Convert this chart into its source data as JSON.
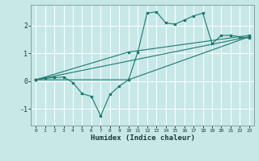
{
  "xlabel": "Humidex (Indice chaleur)",
  "bg_color": "#c8e8e8",
  "line_color": "#1a7a6e",
  "grid_color": "#ffffff",
  "xlim": [
    -0.5,
    23.5
  ],
  "ylim": [
    -1.6,
    2.75
  ],
  "yticks": [
    -1,
    0,
    1,
    2
  ],
  "xticks": [
    0,
    1,
    2,
    3,
    4,
    5,
    6,
    7,
    8,
    9,
    10,
    11,
    12,
    13,
    14,
    15,
    16,
    17,
    18,
    19,
    20,
    21,
    22,
    23
  ],
  "series1_x": [
    0,
    1,
    2,
    3,
    4,
    5,
    6,
    7,
    8,
    9,
    10,
    11,
    12,
    13,
    14,
    15,
    16,
    17,
    18,
    19,
    20,
    21,
    22,
    23
  ],
  "series1_y": [
    0.05,
    0.1,
    0.13,
    0.15,
    -0.05,
    -0.45,
    -0.55,
    -1.25,
    -0.48,
    -0.18,
    0.05,
    1.05,
    2.45,
    2.5,
    2.1,
    2.05,
    2.2,
    2.35,
    2.45,
    1.35,
    1.65,
    1.65,
    1.6,
    1.55
  ],
  "series2_x": [
    0,
    10,
    23
  ],
  "series2_y": [
    0.05,
    0.05,
    1.6
  ],
  "series3_x": [
    0,
    10,
    23
  ],
  "series3_y": [
    0.05,
    1.05,
    1.65
  ],
  "series4_x": [
    0,
    23
  ],
  "series4_y": [
    0.05,
    1.6
  ]
}
